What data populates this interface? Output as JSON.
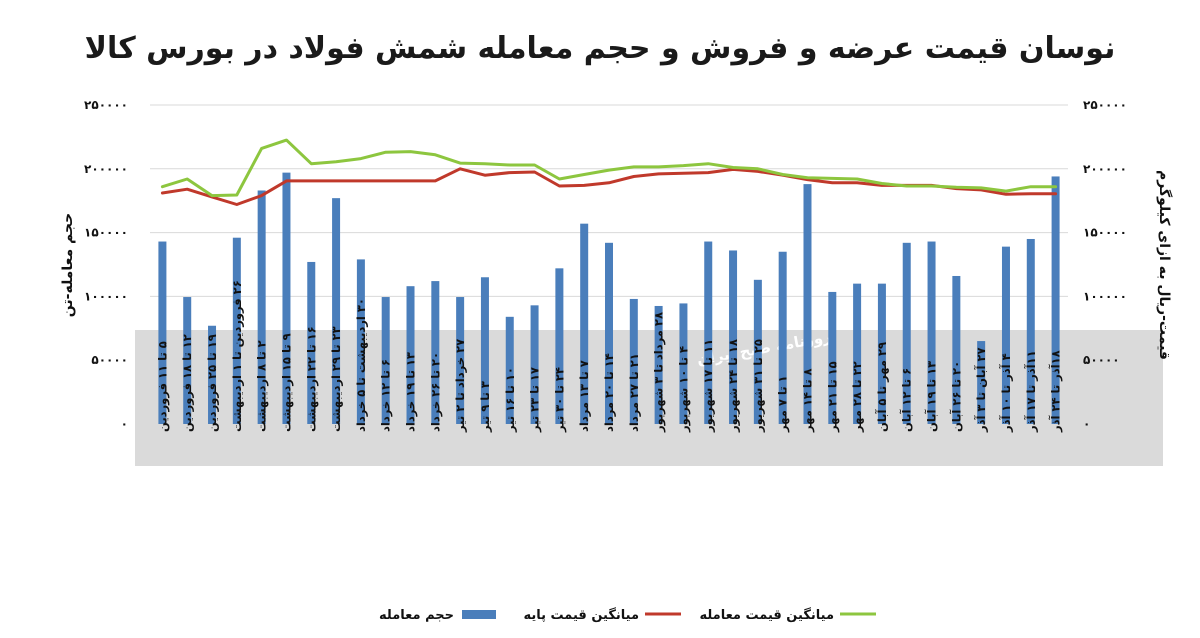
{
  "chart_data": {
    "type": "bar",
    "title": "نوسان قیمت عرضه و فروش و حجم معامله شمش فولاد در بورس کالا",
    "ylabel_left": "حجم معامله-تن",
    "ylabel_right": "قیمت-ریال به ازای کیلوگرم",
    "ylim": [
      0,
      250000
    ],
    "y_ticks": [
      "۰",
      "۵۰۰۰۰",
      "۱۰۰۰۰۰",
      "۱۵۰۰۰۰",
      "۲۰۰۰۰۰",
      "۲۵۰۰۰۰"
    ],
    "y_tick_values": [
      0,
      50000,
      100000,
      150000,
      200000,
      250000
    ],
    "grid": true,
    "legend_position": "bottom",
    "watermark": "روزنامه صبح ایران",
    "categories": [
      "۵ تا ۱۱ فروردین",
      "۱۲ تا ۱۸ فروردین",
      "۱۹ تا ۲۵ فروردین",
      "۲۶ فروردین تا ۱ اردیبهشت",
      "۲ تا ۸ اردیبهشت",
      "۹ تا ۱۵ اردیبهشت",
      "۱۶ تا ۲۲ اردیبهشت",
      "۲۳ تا ۲۹ اردیبهشت",
      "۳۰ اردیبهشت تا ۵ خرداد",
      "۶ تا ۱۲ خرداد",
      "۱۳ تا ۱۹ خرداد",
      "۲۰ تا ۲۶ خرداد",
      "۲۷ خرداد تا ۲ تیر",
      "۳ تا ۹ تیر",
      "۱۰ تا ۱۶ تیر",
      "۱۷ تا ۲۳ تیر",
      "۲۴ تا ۳۰ تیر",
      "۷ تا ۱۳ مرداد",
      "۱۴ تا ۲۰ مرداد",
      "۲۱ تا ۲۷ مرداد",
      "۲۸ مرداد تا ۳ شهریور",
      "۴ تا ۱۰ شهریور",
      "۱۱ تا ۱۷ شهریور",
      "۱۸ تا ۲۴ شهریور",
      "۲۵ تا ۳۱ شهریور",
      "۱ تا ۷ مهر",
      "۸ تا ۱۴ مهر",
      "۱۵ تا ۲۱ مهر",
      "۲۲ تا ۲۸ مهر",
      "۲۹ مهر تا ۵ آبان",
      "۶ تا ۱۲ آبان",
      "۱۳ تا ۱۹ آبان",
      "۲۰ تا ۲۶ آبان",
      "۲۷ آبان تا ۳ آذر",
      "۴ آذر تا ۱۰ آذر",
      "۱۱آذر تا ۱۷ آذر",
      "۱۸آذر تا ۲۴ آذر"
    ],
    "series": [
      {
        "name": "حجم معامله",
        "type": "bar",
        "color": "#4a7ebb",
        "values": [
          143000,
          99500,
          77000,
          146000,
          183000,
          197000,
          127000,
          177000,
          129000,
          99500,
          108000,
          112000,
          99500,
          115000,
          84000,
          93000,
          122000,
          157000,
          142000,
          98000,
          92500,
          94500,
          143000,
          136000,
          113000,
          135000,
          188000,
          103500,
          110000,
          110000,
          142000,
          143000,
          116000,
          65000,
          139000,
          145000,
          194000
        ]
      },
      {
        "name": "میانگین قیمت پایه",
        "type": "line",
        "color": "#c0392b",
        "values": [
          181000,
          184000,
          178000,
          172000,
          179000,
          190500,
          190500,
          190500,
          190500,
          190500,
          190500,
          190500,
          200000,
          195000,
          197000,
          197500,
          186500,
          187000,
          189000,
          194000,
          196000,
          196500,
          197000,
          199500,
          198000,
          195000,
          191500,
          189000,
          189000,
          187000,
          187000,
          187000,
          184500,
          183500,
          180000,
          180500,
          180500
        ]
      },
      {
        "name": "میانگین قیمت معامله",
        "type": "line",
        "color": "#8dc63f",
        "values": [
          186000,
          192000,
          179000,
          179500,
          216000,
          222500,
          204000,
          205500,
          208000,
          213000,
          213500,
          211000,
          204500,
          204000,
          203000,
          203000,
          192000,
          195500,
          199000,
          201500,
          201500,
          202500,
          204000,
          201000,
          200000,
          195500,
          193000,
          192500,
          192000,
          188500,
          186500,
          186500,
          185500,
          185000,
          182500,
          186000,
          186000
        ]
      }
    ]
  }
}
